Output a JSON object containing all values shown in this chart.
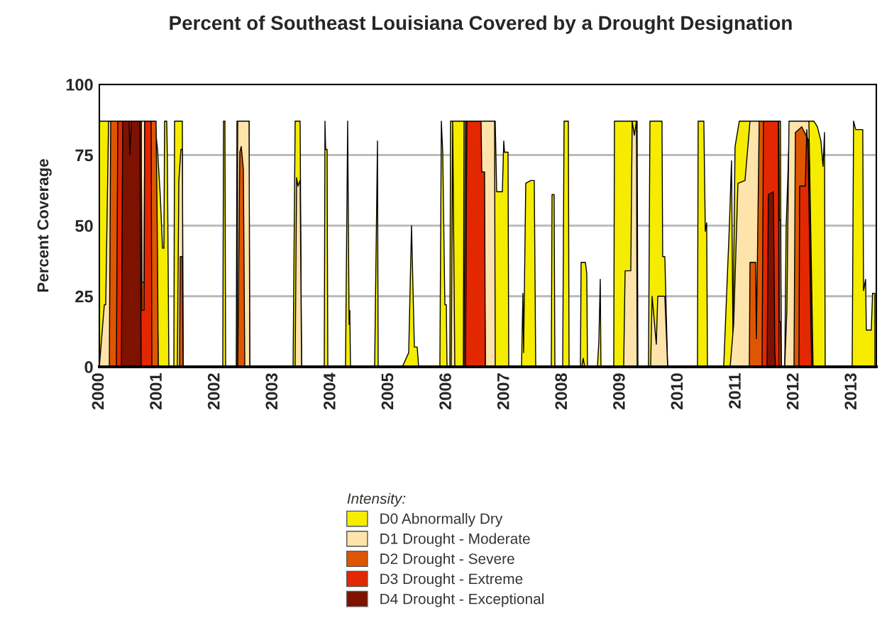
{
  "chart_data": {
    "type": "area",
    "title": "Percent of Southeast Louisiana Covered by a Drought Designation",
    "ylabel": "Percent Coverage",
    "legend_title": "Intensity:",
    "legend": "bottom",
    "grid": "y",
    "xlim": [
      2000,
      2013.42
    ],
    "ylim": [
      0,
      100
    ],
    "xticks": [
      2000,
      2001,
      2002,
      2003,
      2004,
      2005,
      2006,
      2007,
      2008,
      2009,
      2010,
      2011,
      2012,
      2013
    ],
    "yticks": [
      0,
      25,
      50,
      75,
      100
    ],
    "series": [
      {
        "name": "D0 Abnormally Dry",
        "color": "#f5ec00",
        "x": [
          2000.0,
          2000.956,
          2001.005,
          2001.054,
          2001.091,
          2001.115,
          2001.127,
          2001.164,
          2001.176,
          2001.201,
          2001.287,
          2001.299,
          2001.434,
          2001.446,
          2002.132,
          2002.145,
          2002.169,
          2002.181,
          2002.365,
          2002.377,
          2002.586,
          2002.598,
          2003.346,
          2003.382,
          2003.468,
          2003.493,
          2003.885,
          2003.897,
          2003.909,
          2003.934,
          2003.946,
          2004.252,
          2004.289,
          2004.314,
          2004.326,
          2004.338,
          2004.755,
          2004.804,
          2004.816,
          2005.233,
          2005.343,
          2005.392,
          2005.441,
          2005.49,
          2005.515,
          2005.882,
          2005.907,
          2005.931,
          2005.968,
          2005.993,
          2006.005,
          2006.054,
          2006.066,
          2006.838,
          2006.863,
          2006.961,
          2006.985,
          2006.998,
          2007.059,
          2007.071,
          2007.292,
          2007.316,
          2007.328,
          2007.365,
          2007.451,
          2007.512,
          2007.537,
          2007.806,
          2007.819,
          2007.855,
          2007.868,
          2008.003,
          2008.027,
          2008.101,
          2008.113,
          2008.309,
          2008.321,
          2008.395,
          2008.419,
          2008.431,
          2008.603,
          2008.628,
          2008.652,
          2008.664,
          2008.885,
          2008.897,
          2009.289,
          2009.302,
          2009.485,
          2009.51,
          2009.718,
          2009.73,
          2009.767,
          2009.816,
          2010.331,
          2010.343,
          2010.441,
          2010.466,
          2010.49,
          2010.503,
          2010.784,
          2010.882,
          2010.919,
          2010.944,
          2010.98,
          2011.054,
          2011.765,
          2011.777,
          2011.838,
          2011.863,
          2011.924,
          2012.341,
          2012.402,
          2012.463,
          2012.5,
          2012.525,
          2012.537,
          2013.003,
          2013.027,
          2013.064,
          2013.186,
          2013.199,
          2013.235,
          2013.247,
          2013.333,
          2013.355,
          2013.395
        ],
        "values": [
          87,
          87,
          77,
          60,
          42,
          42,
          87,
          87,
          72,
          0,
          0,
          87,
          87,
          0,
          0,
          87,
          87,
          0,
          0,
          87,
          87,
          0,
          0,
          87,
          87,
          0,
          0,
          87,
          77,
          77,
          0,
          0,
          87,
          15,
          20,
          0,
          0,
          80,
          0,
          0,
          5,
          50,
          7,
          7,
          0,
          0,
          87,
          76,
          22,
          22,
          0,
          0,
          87,
          87,
          62,
          62,
          80,
          76,
          76,
          0,
          0,
          26,
          5,
          65,
          66,
          66,
          0,
          0,
          61,
          61,
          0,
          0,
          87,
          87,
          0,
          0,
          37,
          37,
          33,
          0,
          0,
          9,
          31,
          0,
          0,
          87,
          87,
          0,
          0,
          87,
          87,
          39,
          39,
          0,
          0,
          87,
          87,
          48,
          51,
          0,
          0,
          50,
          73,
          10,
          78,
          87,
          87,
          0,
          0,
          50,
          87,
          87,
          85,
          80,
          71,
          83,
          0,
          0,
          87,
          84,
          84,
          27,
          31,
          13,
          13,
          26,
          26
        ]
      },
      {
        "name": "D1 Drought - Moderate",
        "color": "#fee3aa",
        "x": [
          2000.0,
          2000.086,
          2000.11,
          2000.159,
          2000.956,
          2000.993,
          2001.017,
          2001.348,
          2001.373,
          2001.409,
          2001.434,
          2001.446,
          2002.377,
          2002.39,
          2002.586,
          2002.598,
          2003.382,
          2003.407,
          2003.431,
          2003.468,
          2003.493,
          2006.078,
          2006.103,
          2006.14,
          2006.287,
          2006.299,
          2006.826,
          2006.838,
          2008.333,
          2008.358,
          2008.382,
          2009.056,
          2009.081,
          2009.179,
          2009.203,
          2009.24,
          2009.277,
          2009.289,
          2009.522,
          2009.547,
          2009.62,
          2009.645,
          2009.767,
          2009.816,
          2010.895,
          2010.956,
          2011.03,
          2011.152,
          2011.238,
          2011.735,
          2011.745,
          2011.765,
          2011.777,
          2011.838,
          2011.875,
          2011.912,
          2012.255,
          2012.328
        ],
        "values": [
          0,
          22,
          22,
          87,
          87,
          40,
          0,
          0,
          66,
          77,
          77,
          0,
          0,
          87,
          87,
          0,
          0,
          67,
          64,
          66,
          0,
          0,
          87,
          0,
          0,
          87,
          87,
          0,
          0,
          3,
          0,
          0,
          34,
          34,
          87,
          82,
          87,
          0,
          0,
          25,
          8,
          25,
          25,
          0,
          0,
          15,
          65,
          66,
          87,
          87,
          52,
          52,
          0,
          0,
          20,
          87,
          87,
          0
        ]
      },
      {
        "name": "D2 Drought - Severe",
        "color": "#de5700",
        "x": [
          2000.172,
          2000.196,
          2000.723,
          2000.735,
          2000.772,
          2000.784,
          2000.98,
          2001.005,
          2001.017,
          2001.385,
          2001.397,
          2001.434,
          2001.446,
          2002.39,
          2002.426,
          2002.451,
          2002.488,
          2002.512,
          2006.299,
          2006.324,
          2006.556,
          2006.581,
          2006.642,
          2006.667,
          2011.226,
          2011.238,
          2011.336,
          2011.348,
          2011.397,
          2011.735,
          2011.745,
          2011.765,
          2011.777,
          2011.998,
          2012.022,
          2012.132,
          2012.255,
          2012.304,
          2012.316
        ],
        "values": [
          0,
          87,
          87,
          30,
          30,
          87,
          87,
          40,
          0,
          0,
          39,
          39,
          0,
          0,
          76,
          78,
          70,
          0,
          0,
          87,
          87,
          69,
          69,
          0,
          0,
          37,
          37,
          10,
          87,
          87,
          16,
          16,
          0,
          0,
          83,
          85,
          80,
          14,
          0
        ]
      },
      {
        "name": "D3 Drought - Extreme",
        "color": "#e32700",
        "x": [
          2000.294,
          2000.319,
          2000.723,
          2000.735,
          2000.772,
          2000.784,
          2000.895,
          2000.907,
          2006.324,
          2006.348,
          2006.593,
          2006.605,
          2006.654,
          2006.667,
          2011.446,
          2011.471,
          2011.728,
          2011.74,
          2012.083,
          2012.096,
          2012.194,
          2012.218,
          2012.242,
          2012.291,
          2012.304
        ],
        "values": [
          0,
          87,
          87,
          20,
          20,
          87,
          87,
          0,
          0,
          87,
          87,
          69,
          69,
          0,
          0,
          87,
          87,
          0,
          0,
          64,
          64,
          84,
          76,
          14,
          0
        ]
      },
      {
        "name": "D4 Drought - Exceptional",
        "color": "#7d1200",
        "x": [
          2000.38,
          2000.404,
          2000.515,
          2000.527,
          2000.551,
          2000.699,
          2000.723,
          2011.532,
          2011.556,
          2011.642,
          2011.667,
          2011.679
        ],
        "values": [
          0,
          87,
          87,
          75,
          87,
          87,
          0,
          0,
          61,
          62,
          5,
          0
        ]
      }
    ]
  }
}
